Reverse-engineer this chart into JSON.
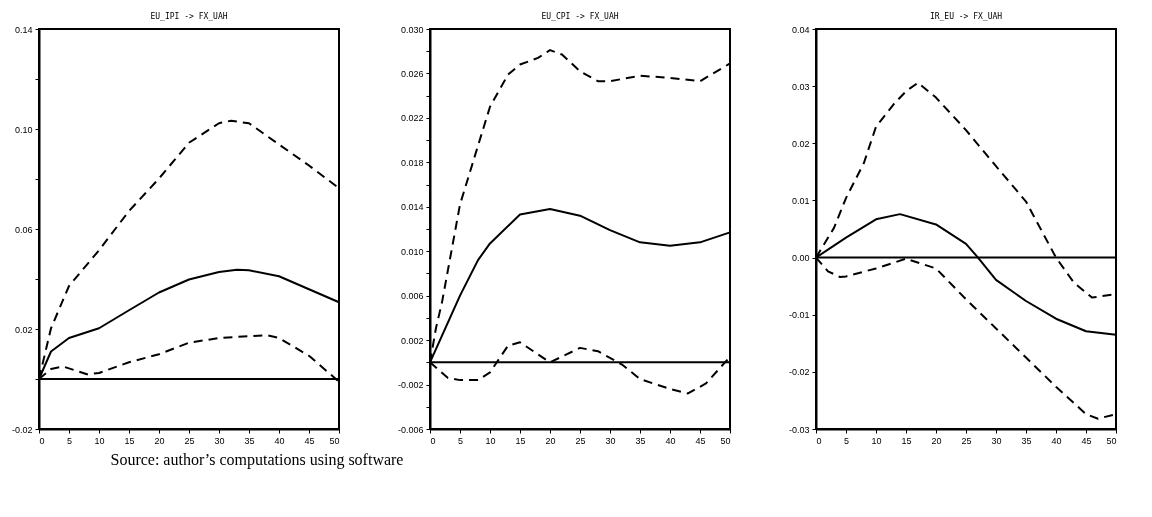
{
  "chart_data": [
    {
      "type": "line",
      "title": "EU_IPI -> FX_UAH",
      "xlim": [
        0,
        50
      ],
      "xticks": [
        0,
        5,
        10,
        15,
        20,
        25,
        30,
        35,
        40,
        45,
        50
      ],
      "ylim": [
        -0.02,
        0.14
      ],
      "yticks": [
        -0.02,
        {
          "value": 0,
          "label": null
        },
        0.02,
        {
          "value": 0.04,
          "label": null
        },
        0.06,
        {
          "value": 0.08,
          "label": null
        },
        {
          "value": 0.1,
          "label": "0.10"
        },
        {
          "value": 0.12,
          "label": null
        },
        0.14
      ],
      "grid": false,
      "annotations": [
        "Source: author’s computations using software"
      ],
      "ref_lines": [
        {
          "axis": "y",
          "value": 0,
          "color": "#000000"
        }
      ],
      "series": [
        {
          "color": "#000000",
          "line_style": "solid",
          "x": [
            0,
            2,
            5,
            10,
            15,
            20,
            25,
            30,
            33,
            35,
            40,
            45,
            50
          ],
          "values": [
            0,
            0.011,
            0.0164,
            0.0203,
            0.0275,
            0.0346,
            0.0398,
            0.0428,
            0.0437,
            0.0435,
            0.0411,
            0.0359,
            0.0307
          ]
        },
        {
          "color": "#000000",
          "line_style": "dashed",
          "x": [
            0,
            2,
            5,
            10,
            15,
            20,
            25,
            30,
            32,
            35,
            40,
            45,
            50
          ],
          "values": [
            0,
            0.0203,
            0.0372,
            0.0515,
            0.0672,
            0.0802,
            0.0945,
            0.1023,
            0.1033,
            0.1023,
            0.0938,
            0.0854,
            0.0763
          ]
        },
        {
          "color": "#000000",
          "line_style": "dashed",
          "x": [
            0,
            2,
            4,
            8,
            10,
            15,
            20,
            25,
            30,
            35,
            38,
            40,
            45,
            50
          ],
          "values": [
            0,
            0.004,
            0.005,
            0.0019,
            0.0024,
            0.0067,
            0.0099,
            0.0145,
            0.0164,
            0.0171,
            0.0175,
            0.0164,
            0.0093,
            -0.0011
          ]
        }
      ]
    },
    {
      "type": "line",
      "title": "EU_CPI -> FX_UAH",
      "xlim": [
        0,
        50
      ],
      "xticks": [
        0,
        5,
        10,
        15,
        20,
        25,
        30,
        35,
        40,
        45,
        50
      ],
      "ylim": [
        -0.006,
        0.03
      ],
      "yticks": [
        -0.006,
        {
          "value": -0.004,
          "label": null
        },
        -0.002,
        {
          "value": 0,
          "label": null
        },
        0.002,
        {
          "value": 0.004,
          "label": null
        },
        0.006,
        {
          "value": 0.008,
          "label": null
        },
        {
          "value": 0.01,
          "label": "0.010"
        },
        {
          "value": 0.012,
          "label": null
        },
        0.014,
        {
          "value": 0.016,
          "label": null
        },
        0.018,
        {
          "value": 0.02,
          "label": null
        },
        0.022,
        {
          "value": 0.024,
          "label": null
        },
        0.026,
        {
          "value": 0.028,
          "label": null
        },
        {
          "value": 0.03,
          "label": "0.030"
        }
      ],
      "grid": false,
      "ref_lines": [
        {
          "axis": "y",
          "value": 0,
          "color": "#000000"
        }
      ],
      "series": [
        {
          "color": "#000000",
          "line_style": "solid",
          "x": [
            0,
            5,
            8,
            10,
            15,
            20,
            25,
            30,
            35,
            40,
            45,
            50
          ],
          "values": [
            0,
            0.006,
            0.0092,
            0.0107,
            0.0133,
            0.0138,
            0.0132,
            0.0119,
            0.0108,
            0.0105,
            0.0108,
            0.0117
          ]
        },
        {
          "color": "#000000",
          "line_style": "dashed",
          "x": [
            0,
            1,
            2,
            5,
            8,
            10,
            13,
            15,
            18,
            20,
            22,
            25,
            28,
            30,
            35,
            40,
            45,
            50
          ],
          "values": [
            0,
            0.0031,
            0.0054,
            0.0142,
            0.0195,
            0.023,
            0.0259,
            0.0268,
            0.0274,
            0.0281,
            0.0277,
            0.0262,
            0.0253,
            0.0253,
            0.0258,
            0.0256,
            0.0253,
            0.0269
          ]
        },
        {
          "color": "#000000",
          "line_style": "dashed",
          "x": [
            0,
            3,
            5,
            8,
            10,
            13,
            15,
            20,
            25,
            28,
            32,
            35,
            40,
            43,
            46,
            50
          ],
          "values": [
            0,
            -0.0014,
            -0.0016,
            -0.0016,
            -0.0009,
            0.0015,
            0.0018,
            0,
            0.0013,
            0.001,
            -0.0002,
            -0.0015,
            -0.0024,
            -0.0028,
            -0.0019,
            0.0005
          ]
        }
      ]
    },
    {
      "type": "line",
      "title": "IR_EU -> FX_UAH",
      "xlim": [
        0,
        50
      ],
      "xticks": [
        0,
        5,
        10,
        15,
        20,
        25,
        30,
        35,
        40,
        45,
        50
      ],
      "ylim": [
        -0.03,
        0.04
      ],
      "yticks": [
        -0.03,
        -0.02,
        -0.01,
        {
          "value": 0,
          "label": "0.00"
        },
        0.01,
        0.02,
        0.03,
        0.04
      ],
      "grid": false,
      "ref_lines": [
        {
          "axis": "y",
          "value": 0,
          "color": "#000000"
        }
      ],
      "series": [
        {
          "color": "#000000",
          "line_style": "solid",
          "x": [
            0,
            5,
            10,
            14,
            20,
            25,
            27,
            30,
            35,
            40,
            45,
            50
          ],
          "values": [
            0,
            0.0035,
            0.0067,
            0.0076,
            0.0058,
            0.0024,
            0,
            -0.0039,
            -0.0076,
            -0.0107,
            -0.0129,
            -0.0135
          ]
        },
        {
          "color": "#000000",
          "line_style": "dashed",
          "x": [
            0,
            3,
            5,
            8,
            10,
            13,
            15,
            17,
            20,
            25,
            30,
            35,
            40,
            43,
            46,
            50
          ],
          "values": [
            0,
            0.0052,
            0.0104,
            0.0166,
            0.0229,
            0.0269,
            0.0291,
            0.0306,
            0.028,
            0.0223,
            0.016,
            0.0098,
            0,
            -0.0044,
            -0.007,
            -0.0064
          ]
        },
        {
          "color": "#000000",
          "line_style": "dashed",
          "x": [
            0,
            2,
            4,
            5,
            10,
            15,
            20,
            25,
            30,
            35,
            40,
            45,
            47,
            50
          ],
          "values": [
            0,
            -0.0024,
            -0.0034,
            -0.0033,
            -0.0019,
            -0.0002,
            -0.0019,
            -0.0073,
            -0.0124,
            -0.0175,
            -0.0226,
            -0.0274,
            -0.0282,
            -0.0274
          ]
        }
      ]
    }
  ]
}
